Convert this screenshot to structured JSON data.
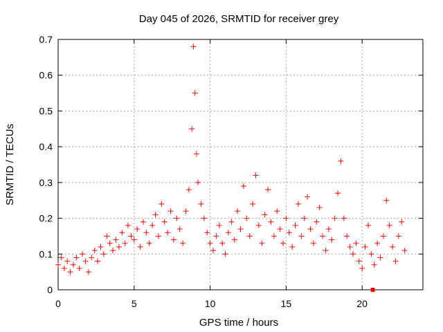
{
  "chart_data": {
    "type": "scatter",
    "title": "Day 045 of 2026, SRMTID for receiver grey",
    "xlabel": "GPS time / hours",
    "ylabel": "SRMTID / TECUs",
    "xlim": [
      0,
      24
    ],
    "ylim": [
      0,
      0.7
    ],
    "xticks": [
      0,
      5,
      10,
      15,
      20
    ],
    "xtick_labels": [
      "0",
      "5",
      "10",
      "15",
      "20"
    ],
    "yticks": [
      0,
      0.1,
      0.2,
      0.3,
      0.4,
      0.5,
      0.6,
      0.7
    ],
    "ytick_labels": [
      "0",
      "0.1",
      "0.2",
      "0.3",
      "0.4",
      "0.5",
      "0.6",
      "0.7"
    ],
    "grid": true,
    "marker": "plus",
    "color": "#ff0000",
    "series": [
      {
        "name": "SRMTID",
        "x": [
          0.0,
          0.2,
          0.4,
          0.6,
          0.8,
          1.0,
          1.2,
          1.4,
          1.6,
          1.8,
          2.0,
          2.2,
          2.4,
          2.6,
          2.8,
          3.0,
          3.2,
          3.4,
          3.6,
          3.8,
          4.0,
          4.2,
          4.4,
          4.6,
          4.8,
          5.0,
          5.2,
          5.4,
          5.6,
          5.8,
          6.0,
          6.2,
          6.4,
          6.6,
          6.8,
          7.0,
          7.2,
          7.4,
          7.6,
          7.8,
          8.0,
          8.2,
          8.4,
          8.6,
          8.8,
          8.9,
          9.0,
          9.1,
          9.2,
          9.4,
          9.6,
          9.8,
          10.0,
          10.2,
          10.4,
          10.6,
          10.8,
          11.0,
          11.2,
          11.4,
          11.6,
          11.8,
          12.0,
          12.2,
          12.4,
          12.6,
          12.8,
          13.0,
          13.2,
          13.4,
          13.6,
          13.8,
          14.0,
          14.2,
          14.4,
          14.6,
          14.8,
          15.0,
          15.2,
          15.4,
          15.6,
          15.8,
          16.0,
          16.2,
          16.4,
          16.6,
          16.8,
          17.0,
          17.2,
          17.4,
          17.6,
          17.8,
          18.0,
          18.2,
          18.4,
          18.6,
          18.8,
          19.0,
          19.2,
          19.4,
          19.6,
          19.8,
          20.0,
          20.2,
          20.4,
          20.6,
          20.8,
          21.0,
          21.2,
          21.4,
          21.6,
          21.8,
          22.0,
          22.2,
          22.4,
          22.6,
          22.8
        ],
        "y": [
          0.07,
          0.09,
          0.06,
          0.08,
          0.05,
          0.07,
          0.09,
          0.06,
          0.1,
          0.08,
          0.05,
          0.09,
          0.11,
          0.08,
          0.12,
          0.1,
          0.15,
          0.13,
          0.11,
          0.14,
          0.12,
          0.16,
          0.13,
          0.18,
          0.15,
          0.14,
          0.17,
          0.12,
          0.19,
          0.16,
          0.13,
          0.18,
          0.21,
          0.15,
          0.24,
          0.19,
          0.16,
          0.22,
          0.14,
          0.2,
          0.17,
          0.13,
          0.22,
          0.28,
          0.45,
          0.68,
          0.55,
          0.38,
          0.3,
          0.24,
          0.2,
          0.16,
          0.13,
          0.11,
          0.15,
          0.18,
          0.13,
          0.1,
          0.16,
          0.19,
          0.14,
          0.22,
          0.17,
          0.29,
          0.2,
          0.15,
          0.24,
          0.32,
          0.18,
          0.13,
          0.21,
          0.28,
          0.19,
          0.15,
          0.22,
          0.17,
          0.13,
          0.2,
          0.16,
          0.12,
          0.18,
          0.24,
          0.15,
          0.2,
          0.26,
          0.17,
          0.13,
          0.19,
          0.23,
          0.15,
          0.11,
          0.17,
          0.14,
          0.2,
          0.27,
          0.36,
          0.2,
          0.15,
          0.12,
          0.1,
          0.13,
          0.08,
          0.06,
          0.12,
          0.18,
          0.1,
          0.07,
          0.13,
          0.09,
          0.15,
          0.25,
          0.18,
          0.12,
          0.08,
          0.15,
          0.19,
          0.11
        ]
      }
    ],
    "extra_marker": {
      "x": 20.7,
      "y": 0.0,
      "shape": "square"
    }
  }
}
